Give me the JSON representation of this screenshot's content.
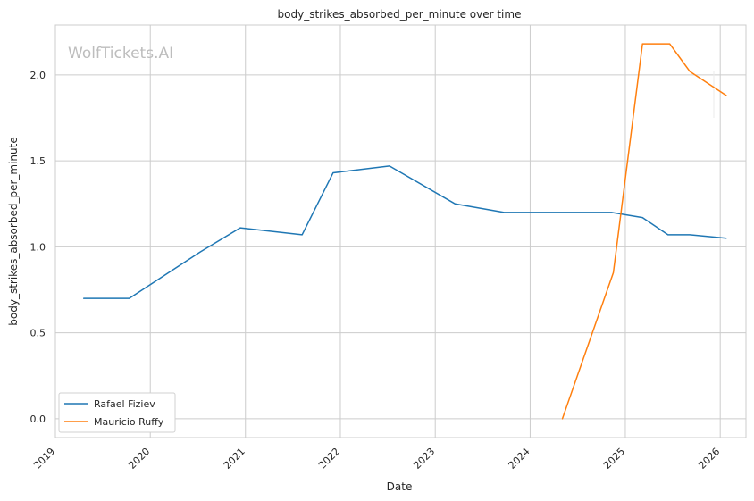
{
  "chart_data": {
    "type": "line",
    "title": "body_strikes_absorbed_per_minute over time",
    "xlabel": "Date",
    "ylabel": "body_strikes_absorbed_per_minute",
    "xlim": [
      "2019-01-01",
      "2026-04-10"
    ],
    "ylim": [
      -0.11,
      2.29
    ],
    "x_ticks": [
      "2019",
      "2020",
      "2021",
      "2022",
      "2023",
      "2024",
      "2025",
      "2026"
    ],
    "y_ticks": [
      "0.0",
      "0.5",
      "1.0",
      "1.5",
      "2.0"
    ],
    "grid": true,
    "legend_position": "lower-left",
    "watermark": "WolfTickets.AI",
    "series": [
      {
        "name": "Rafael Fiziev",
        "color": "#1f77b4",
        "points": [
          {
            "x": "2019-04-20",
            "y": 0.7
          },
          {
            "x": "2019-10-12",
            "y": 0.7
          },
          {
            "x": "2020-07-11",
            "y": 0.97
          },
          {
            "x": "2020-12-12",
            "y": 1.11
          },
          {
            "x": "2021-08-07",
            "y": 1.07
          },
          {
            "x": "2021-12-04",
            "y": 1.43
          },
          {
            "x": "2022-07-09",
            "y": 1.47
          },
          {
            "x": "2023-03-18",
            "y": 1.25
          },
          {
            "x": "2023-09-23",
            "y": 1.2
          },
          {
            "x": "2024-11-09",
            "y": 1.2
          },
          {
            "x": "2025-03-08",
            "y": 1.17
          },
          {
            "x": "2025-06-14",
            "y": 1.07
          },
          {
            "x": "2025-09-06",
            "y": 1.07
          },
          {
            "x": "2026-01-24",
            "y": 1.05
          }
        ]
      },
      {
        "name": "Mauricio Ruffy",
        "color": "#ff7f0e",
        "points": [
          {
            "x": "2024-05-04",
            "y": 0.0
          },
          {
            "x": "2024-11-16",
            "y": 0.85
          },
          {
            "x": "2025-03-08",
            "y": 2.18
          },
          {
            "x": "2025-06-21",
            "y": 2.18
          },
          {
            "x": "2025-09-06",
            "y": 2.02
          },
          {
            "x": "2026-01-24",
            "y": 1.88
          }
        ]
      }
    ]
  }
}
